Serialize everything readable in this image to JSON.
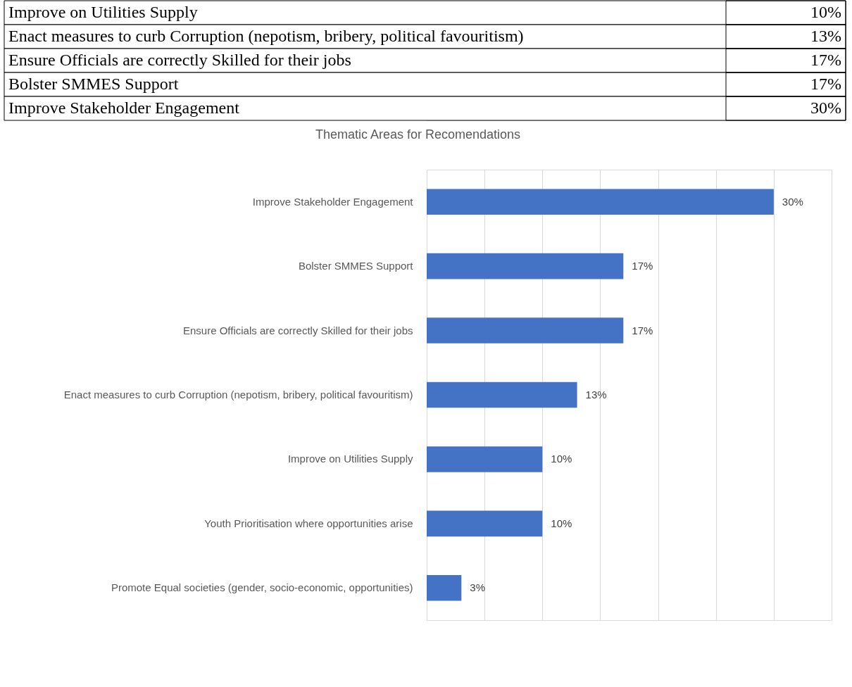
{
  "chart_data": [
    {
      "type": "other",
      "categories": [
        "Improve on Utilities Supply",
        "Enact measures to curb Corruption (nepotism, bribery, political favouritism)",
        "Ensure Officials are correctly Skilled for their jobs",
        "Bolster SMMES Support",
        "Improve Stakeholder Engagement"
      ],
      "values": [
        10,
        13,
        17,
        17,
        30
      ],
      "value_labels": [
        "10%",
        "13%",
        "17%",
        "17%",
        "30%"
      ]
    },
    {
      "type": "bar",
      "orientation": "horizontal",
      "title": "Thematic Areas for Recomendations",
      "categories": [
        "Improve Stakeholder Engagement",
        "Bolster SMMES Support",
        "Ensure Officials are correctly Skilled for their jobs",
        "Enact measures to curb Corruption (nepotism, bribery, political favouritism)",
        "Improve on Utilities Supply",
        "Youth Prioritisation where opportunities arise",
        "Promote Equal societies (gender, socio-economic, opportunities)"
      ],
      "values": [
        30,
        17,
        17,
        13,
        10,
        10,
        3
      ],
      "value_labels": [
        "30%",
        "17%",
        "17%",
        "13%",
        "10%",
        "10%",
        "3%"
      ],
      "color": "#4472c4",
      "xlim": [
        0,
        35
      ],
      "xticks": [
        0,
        5,
        10,
        15,
        20,
        25,
        30,
        35
      ],
      "grid": "x",
      "tick_labels": "y"
    }
  ]
}
